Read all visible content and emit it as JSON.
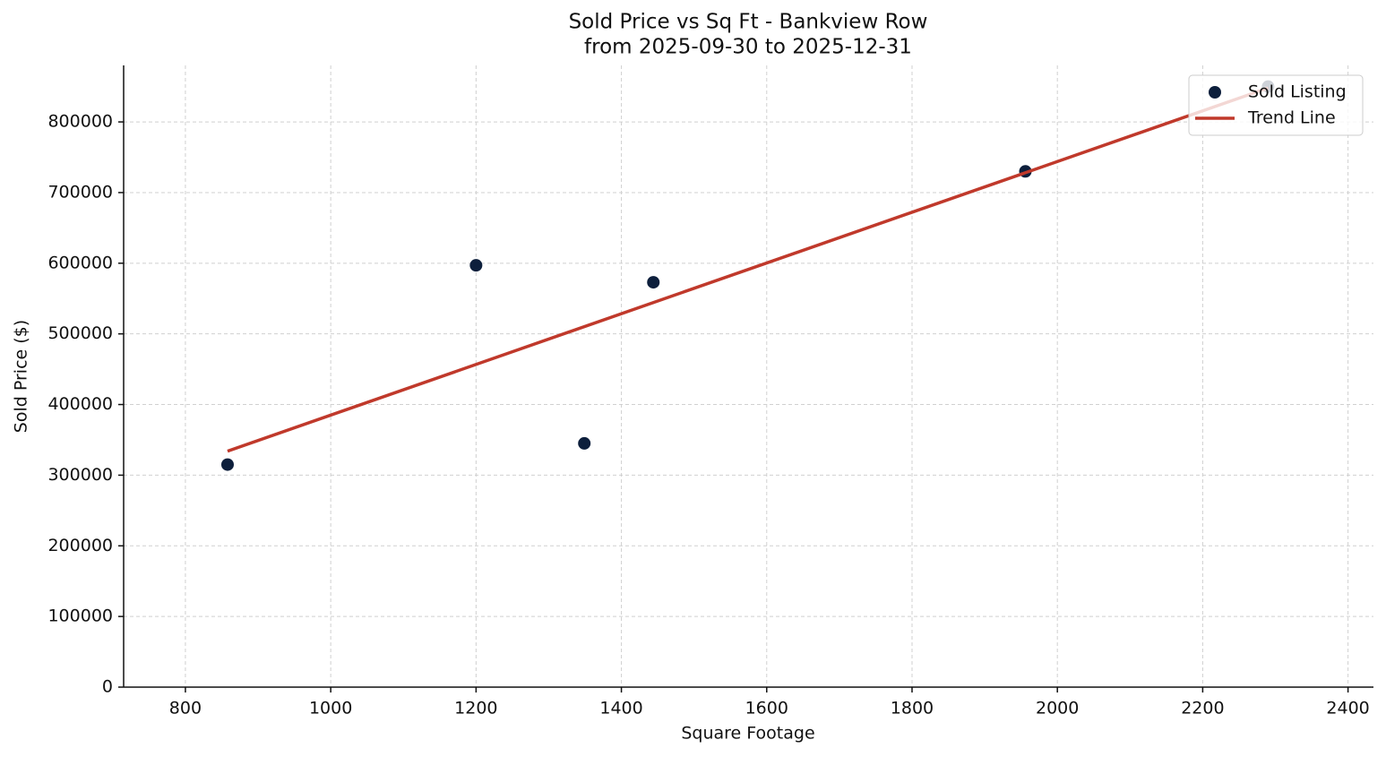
{
  "chart_data": {
    "type": "scatter",
    "title": "Sold Price vs Sq Ft - Bankview Row",
    "subtitle": "from 2025-09-30 to 2025-12-31",
    "x_label": "Square Footage",
    "y_label": "Sold Price ($)",
    "xlim": [
      715,
      2435
    ],
    "ylim": [
      0,
      880000
    ],
    "xticks": [
      800,
      1000,
      1200,
      1400,
      1600,
      1800,
      2000,
      2200,
      2400
    ],
    "yticks": [
      0,
      100000,
      200000,
      300000,
      400000,
      500000,
      600000,
      700000,
      800000
    ],
    "grid": true,
    "legend": "upper right",
    "series": [
      {
        "name": "Sold Listing",
        "type": "scatter",
        "color": "#0d1f3c",
        "x": [
          858,
          1200,
          1349,
          1444,
          1956,
          2290
        ],
        "values": [
          315000,
          597000,
          345000,
          573000,
          730000,
          850000
        ]
      },
      {
        "name": "Trend Line",
        "type": "line",
        "color": "#c0392b",
        "x": [
          858,
          2290
        ],
        "values": [
          334000,
          848000
        ]
      }
    ]
  }
}
